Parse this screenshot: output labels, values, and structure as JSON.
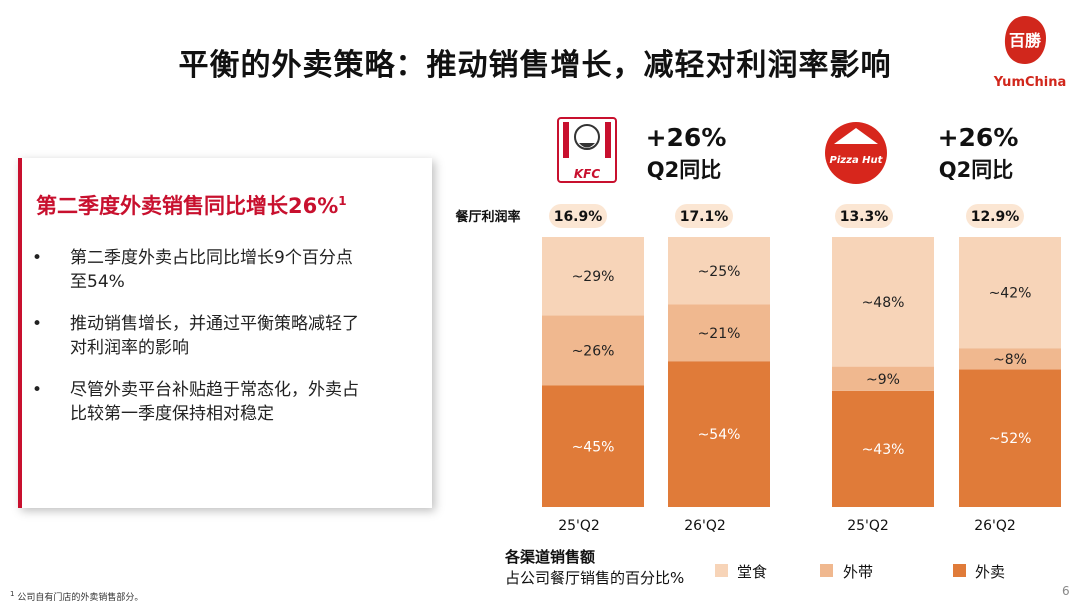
{
  "title": "平衡的外卖策略：推动销售增长，减轻对利润率影响",
  "logo": {
    "brand": "YumChina",
    "seal_text": "百勝"
  },
  "card": {
    "heading": "第二季度外卖销售同比增长26%",
    "heading_sup": "1",
    "bullets": [
      {
        "line1": "第二季度外卖占比同比增长9个百分点",
        "line2": "至54%"
      },
      {
        "line1": "推动销售增长，并通过平衡策略减轻了",
        "line2": "对利润率的影响"
      },
      {
        "line1": "尽管外卖平台补贴趋于常态化，外卖占",
        "line2": "比较第一季度保持相对稳定"
      }
    ]
  },
  "brands": {
    "kfc": {
      "logo_text": "KFC",
      "growth": "+26%",
      "growth_label": "Q2同比"
    },
    "pizzahut": {
      "logo_text": "Pizza Hut",
      "growth": "+26%",
      "growth_label": "Q2同比"
    }
  },
  "chart_data": {
    "type": "bar",
    "stacked": true,
    "ylim": [
      0,
      100
    ],
    "margin_label": "餐厅利润率",
    "groups": [
      {
        "brand": "KFC",
        "categories": [
          "25'Q2",
          "26'Q2"
        ],
        "margins": [
          "16.9%",
          "17.1%"
        ]
      },
      {
        "brand": "Pizza Hut",
        "categories": [
          "25'Q2",
          "26'Q2"
        ],
        "margins": [
          "13.3%",
          "12.9%"
        ]
      }
    ],
    "series": [
      {
        "name": "外卖",
        "color": "#e07b39",
        "values": [
          45,
          54,
          43,
          52
        ],
        "labels": [
          "~45%",
          "~54%",
          "~43%",
          "~52%"
        ]
      },
      {
        "name": "外带",
        "color": "#f0b88f",
        "values": [
          26,
          21,
          9,
          8
        ],
        "labels": [
          "~26%",
          "~21%",
          "~9%",
          "~8%"
        ]
      },
      {
        "name": "堂食",
        "color": "#f7d4b8",
        "values": [
          29,
          25,
          48,
          42
        ],
        "labels": [
          "~29%",
          "~25%",
          "~48%",
          "~42%"
        ]
      }
    ],
    "legend_order": [
      "堂食",
      "外带",
      "外卖"
    ],
    "caption_line1": "各渠道销售额",
    "caption_line2": "占公司餐厅销售的百分比%"
  },
  "footnote": {
    "sup": "1",
    "text": "公司自有门店的外卖销售部分。"
  },
  "page_number": "6",
  "colors": {
    "accent_red": "#c8102e",
    "delivery": "#e07b39",
    "takeaway": "#f0b88f",
    "dinein": "#f7d4b8",
    "margin_pill": "#fbe6d3"
  }
}
